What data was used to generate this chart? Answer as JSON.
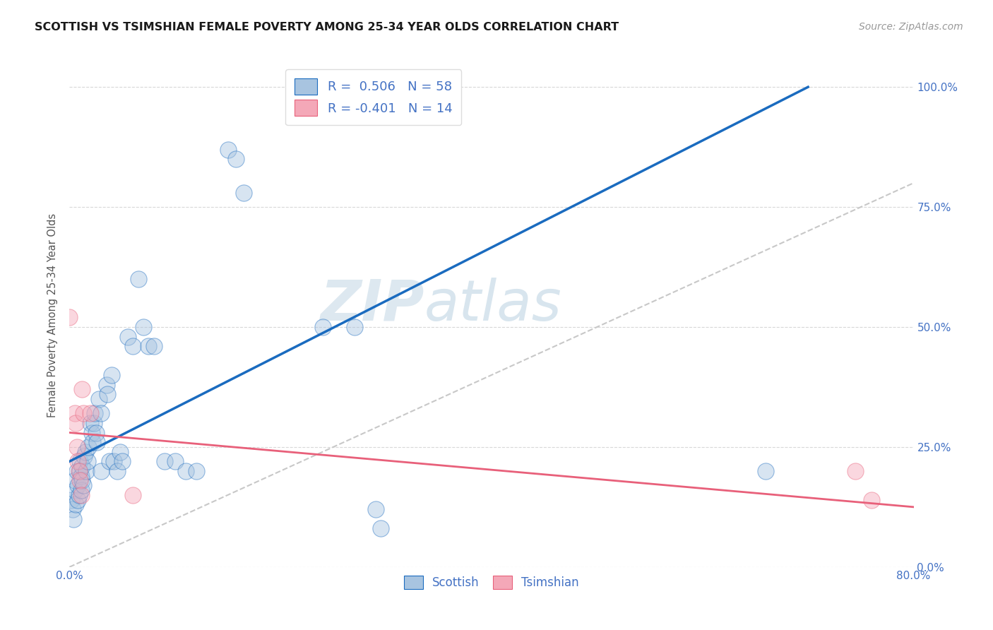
{
  "title": "SCOTTISH VS TSIMSHIAN FEMALE POVERTY AMONG 25-34 YEAR OLDS CORRELATION CHART",
  "source": "Source: ZipAtlas.com",
  "ylabel": "Female Poverty Among 25-34 Year Olds",
  "xlim": [
    0.0,
    0.8
  ],
  "ylim": [
    0.0,
    1.05
  ],
  "watermark": "ZIPatlas",
  "legend_r_scottish": "R =  0.506",
  "legend_n_scottish": "N = 58",
  "legend_r_tsimshian": "R = -0.401",
  "legend_n_tsimshian": "N = 14",
  "scottish_color": "#a8c4e0",
  "tsimshian_color": "#f4a8b8",
  "line_scottish_color": "#1a6bbf",
  "line_tsimshian_color": "#e8607a",
  "line_diagonal_color": "#c8c8c8",
  "blue_line_x0": 0.0,
  "blue_line_y0": 0.22,
  "blue_line_x1": 0.7,
  "blue_line_y1": 1.0,
  "pink_line_x0": 0.0,
  "pink_line_y0": 0.28,
  "pink_line_x1": 0.8,
  "pink_line_y1": 0.125,
  "scottish_scatter": [
    [
      0.002,
      0.14
    ],
    [
      0.003,
      0.12
    ],
    [
      0.004,
      0.1
    ],
    [
      0.005,
      0.16
    ],
    [
      0.005,
      0.18
    ],
    [
      0.006,
      0.13
    ],
    [
      0.007,
      0.2
    ],
    [
      0.008,
      0.17
    ],
    [
      0.008,
      0.14
    ],
    [
      0.009,
      0.15
    ],
    [
      0.01,
      0.22
    ],
    [
      0.01,
      0.2
    ],
    [
      0.011,
      0.19
    ],
    [
      0.011,
      0.16
    ],
    [
      0.012,
      0.21
    ],
    [
      0.012,
      0.18
    ],
    [
      0.013,
      0.17
    ],
    [
      0.014,
      0.23
    ],
    [
      0.015,
      0.24
    ],
    [
      0.016,
      0.2
    ],
    [
      0.017,
      0.22
    ],
    [
      0.018,
      0.25
    ],
    [
      0.02,
      0.3
    ],
    [
      0.021,
      0.28
    ],
    [
      0.022,
      0.26
    ],
    [
      0.023,
      0.3
    ],
    [
      0.024,
      0.32
    ],
    [
      0.025,
      0.28
    ],
    [
      0.026,
      0.26
    ],
    [
      0.028,
      0.35
    ],
    [
      0.03,
      0.32
    ],
    [
      0.03,
      0.2
    ],
    [
      0.035,
      0.38
    ],
    [
      0.036,
      0.36
    ],
    [
      0.038,
      0.22
    ],
    [
      0.04,
      0.4
    ],
    [
      0.042,
      0.22
    ],
    [
      0.045,
      0.2
    ],
    [
      0.048,
      0.24
    ],
    [
      0.05,
      0.22
    ],
    [
      0.055,
      0.48
    ],
    [
      0.06,
      0.46
    ],
    [
      0.065,
      0.6
    ],
    [
      0.07,
      0.5
    ],
    [
      0.075,
      0.46
    ],
    [
      0.08,
      0.46
    ],
    [
      0.09,
      0.22
    ],
    [
      0.1,
      0.22
    ],
    [
      0.11,
      0.2
    ],
    [
      0.12,
      0.2
    ],
    [
      0.15,
      0.87
    ],
    [
      0.158,
      0.85
    ],
    [
      0.165,
      0.78
    ],
    [
      0.24,
      0.5
    ],
    [
      0.27,
      0.5
    ],
    [
      0.29,
      0.12
    ],
    [
      0.295,
      0.08
    ],
    [
      0.66,
      0.2
    ]
  ],
  "tsimshian_scatter": [
    [
      0.0,
      0.52
    ],
    [
      0.005,
      0.32
    ],
    [
      0.006,
      0.3
    ],
    [
      0.007,
      0.25
    ],
    [
      0.008,
      0.22
    ],
    [
      0.009,
      0.2
    ],
    [
      0.01,
      0.18
    ],
    [
      0.011,
      0.15
    ],
    [
      0.012,
      0.37
    ],
    [
      0.013,
      0.32
    ],
    [
      0.02,
      0.32
    ],
    [
      0.06,
      0.15
    ],
    [
      0.745,
      0.2
    ],
    [
      0.76,
      0.14
    ]
  ],
  "scatter_size": 280,
  "scatter_alpha": 0.45,
  "figsize": [
    14.06,
    8.92
  ],
  "dpi": 100
}
